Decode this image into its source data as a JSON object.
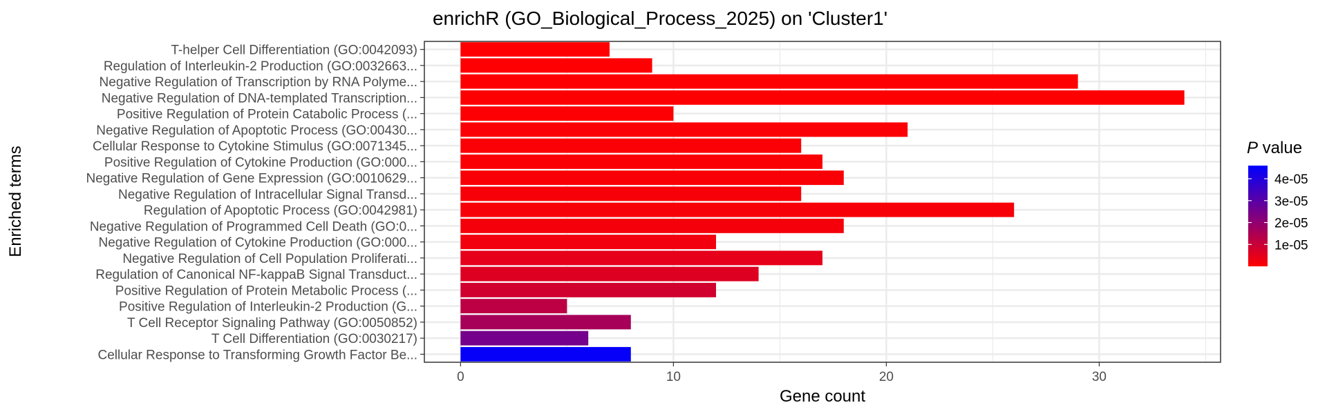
{
  "chart_data": {
    "type": "bar",
    "orientation": "horizontal",
    "title": "enrichR (GO_Biological_Process_2025) on 'Cluster1'",
    "xlabel": "Gene count",
    "ylabel": "Enriched terms",
    "xlim": [
      -1.7,
      35.7
    ],
    "x_ticks": [
      0,
      10,
      20,
      30
    ],
    "grid": true,
    "categories": [
      "T-helper Cell Differentiation (GO:0042093)",
      "Regulation of Interleukin-2 Production (GO:0032663...",
      "Negative Regulation of Transcription by RNA Polyme...",
      "Negative Regulation of DNA-templated Transcription...",
      "Positive Regulation of Protein Catabolic Process (...",
      "Negative Regulation of Apoptotic Process (GO:00430...",
      "Cellular Response to Cytokine Stimulus (GO:0071345...",
      "Positive Regulation of Cytokine Production (GO:000...",
      "Negative Regulation of Gene Expression (GO:0010629...",
      "Negative Regulation of Intracellular Signal Transd...",
      "Regulation of Apoptotic Process (GO:0042981)",
      "Negative Regulation of Programmed Cell Death (GO:0...",
      "Negative Regulation of Cytokine Production (GO:000...",
      "Negative Regulation of Cell Population Proliferati...",
      "Regulation of Canonical NF-kappaB Signal Transduct...",
      "Positive Regulation of Protein Metabolic Process (...",
      "Positive Regulation of Interleukin-2 Production (G...",
      "T Cell Receptor Signaling Pathway (GO:0050852)",
      "T Cell Differentiation (GO:0030217)",
      "Cellular Response to Transforming Growth Factor Be..."
    ],
    "values": [
      7,
      9,
      29,
      34,
      10,
      21,
      16,
      17,
      18,
      16,
      26,
      18,
      12,
      17,
      14,
      12,
      5,
      8,
      6,
      8
    ],
    "p_values": [
      1e-07,
      2e-07,
      3e-07,
      4e-07,
      5e-07,
      7e-07,
      8e-07,
      9e-07,
      1.1e-06,
      1.3e-06,
      1.5e-06,
      1.8e-06,
      2.4e-06,
      4.5e-06,
      6e-06,
      8.5e-06,
      1.2e-05,
      1.6e-05,
      2.5e-05,
      4.5e-05
    ],
    "colorbar": {
      "title_italic": "P",
      "title_rest": " value",
      "range": [
        0,
        4.6e-05
      ],
      "ticks": [
        1e-05,
        2e-05,
        3e-05,
        4e-05
      ],
      "tick_labels": [
        "1e-05",
        "2e-05",
        "3e-05",
        "4e-05"
      ],
      "low_color": "#ff0000",
      "high_color": "#0000ff"
    },
    "legend_position": "right"
  }
}
